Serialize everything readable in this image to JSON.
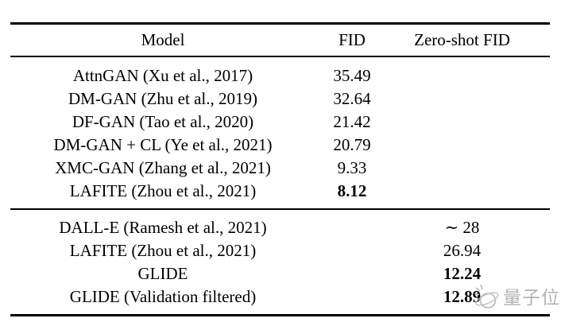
{
  "table": {
    "headers": {
      "model": "Model",
      "fid": "FID",
      "zero_shot_fid": "Zero-shot FID"
    },
    "section1": [
      {
        "model": "AttnGAN (Xu et al., 2017)",
        "fid": "35.49",
        "zero": "",
        "bold": false
      },
      {
        "model": "DM-GAN (Zhu et al., 2019)",
        "fid": "32.64",
        "zero": "",
        "bold": false
      },
      {
        "model": "DF-GAN (Tao et al., 2020)",
        "fid": "21.42",
        "zero": "",
        "bold": false
      },
      {
        "model": "DM-GAN + CL (Ye et al., 2021)",
        "fid": "20.79",
        "zero": "",
        "bold": false
      },
      {
        "model": "XMC-GAN (Zhang et al., 2021)",
        "fid": "9.33",
        "zero": "",
        "bold": false
      },
      {
        "model": "LAFITE (Zhou et al., 2021)",
        "fid": "8.12",
        "zero": "",
        "bold": true
      }
    ],
    "section2": [
      {
        "model": "DALL-E (Ramesh et al., 2021)",
        "fid": "",
        "zero": "∼ 28",
        "bold": false
      },
      {
        "model": "LAFITE (Zhou et al., 2021)",
        "fid": "",
        "zero": "26.94",
        "bold": false
      },
      {
        "model": "GLIDE",
        "fid": "",
        "zero": "12.24",
        "bold": true
      },
      {
        "model": "GLIDE (Validation filtered)",
        "fid": "",
        "zero": "12.89",
        "bold": true
      }
    ]
  },
  "watermark": {
    "text": "量子位",
    "color": "#b3b3b3",
    "logo": "qbitai-logo-icon"
  }
}
